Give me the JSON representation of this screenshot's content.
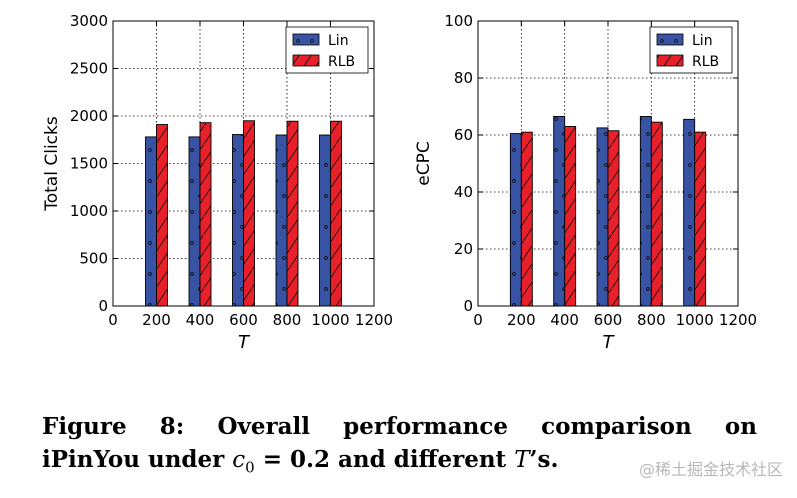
{
  "chart_data": [
    {
      "type": "bar",
      "ylabel": "Total Clicks",
      "xlabel": "T",
      "x": [
        200,
        400,
        600,
        800,
        1000
      ],
      "xlim": [
        0,
        1200
      ],
      "xticks": [
        "0",
        "200",
        "400",
        "600",
        "800",
        "1000",
        "1200"
      ],
      "ylim": [
        0,
        3000
      ],
      "yticks": [
        "0",
        "500",
        "1000",
        "1500",
        "2000",
        "2500",
        "3000"
      ],
      "grid": true,
      "legend_position": "top-right",
      "series": [
        {
          "name": "Lin",
          "values": [
            1780,
            1780,
            1805,
            1800,
            1800
          ],
          "color": "#3953a4",
          "hatch": "dots"
        },
        {
          "name": "RLB",
          "values": [
            1910,
            1930,
            1950,
            1945,
            1945
          ],
          "color": "#e8202a",
          "hatch": "diagonal"
        }
      ]
    },
    {
      "type": "bar",
      "ylabel": "eCPC",
      "xlabel": "T",
      "x": [
        200,
        400,
        600,
        800,
        1000
      ],
      "xlim": [
        0,
        1200
      ],
      "xticks": [
        "0",
        "200",
        "400",
        "600",
        "800",
        "1000",
        "1200"
      ],
      "ylim": [
        0,
        100
      ],
      "yticks": [
        "0",
        "20",
        "40",
        "60",
        "80",
        "100"
      ],
      "grid": true,
      "legend_position": "top-right",
      "series": [
        {
          "name": "Lin",
          "values": [
            60.5,
            66.5,
            62.5,
            66.5,
            65.5
          ],
          "color": "#3953a4",
          "hatch": "dots"
        },
        {
          "name": "RLB",
          "values": [
            61,
            63,
            61.5,
            64.5,
            61
          ],
          "color": "#e8202a",
          "hatch": "diagonal"
        }
      ]
    }
  ],
  "caption": {
    "line1": [
      "Figure",
      "8:",
      "Overall",
      "performance",
      "comparison",
      "on"
    ],
    "line2_a": "iPinYou under ",
    "line2_math": "c",
    "line2_sub": "0",
    "line2_b": " = 0.2 and different ",
    "line2_T": "T",
    "line2_c": "’s."
  },
  "watermark": "@稀土掘金技术社区"
}
